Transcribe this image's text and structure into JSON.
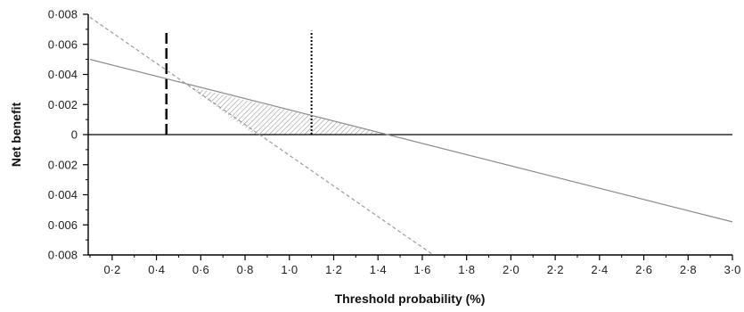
{
  "chart_data": {
    "type": "line",
    "title": "",
    "xlabel": "Threshold probability (%)",
    "ylabel": "Net benefit",
    "xlim": [
      0.1,
      3.0
    ],
    "ylim": [
      -0.008,
      0.008
    ],
    "x_ticks": [
      0.2,
      0.4,
      0.6,
      0.8,
      1.0,
      1.2,
      1.4,
      1.6,
      1.8,
      2.0,
      2.2,
      2.4,
      2.6,
      2.8,
      3.0
    ],
    "x_tick_labels": [
      "0·2",
      "0·4",
      "0·6",
      "0·8",
      "1·0",
      "1·2",
      "1·4",
      "1·6",
      "1·8",
      "2·0",
      "2·2",
      "2·4",
      "2·6",
      "2·8",
      "3·0"
    ],
    "y_ticks": [
      0.008,
      0.006,
      0.004,
      0.002,
      0,
      -0.002,
      -0.004,
      -0.006,
      -0.008
    ],
    "y_tick_labels": [
      "0·008",
      "0·006",
      "0·004",
      "0·002",
      "0",
      "0·002",
      "0·004",
      "0·006",
      "0·008"
    ],
    "grid": false,
    "legend": "none",
    "series": [
      {
        "style": "solid",
        "color": "#8c8c8c",
        "x": [
          0.1,
          3.0
        ],
        "y": [
          0.005,
          -0.0058
        ]
      },
      {
        "style": "dashed",
        "color": "#9a9a9a",
        "x": [
          0.1,
          1.65
        ],
        "y": [
          0.0078,
          -0.008
        ]
      }
    ],
    "reference_lines": [
      {
        "orientation": "horizontal",
        "value": 0,
        "style": "solid",
        "color": "#000000"
      },
      {
        "orientation": "vertical",
        "value": 0.445,
        "style": "long-dash",
        "color": "#000000",
        "y_range": [
          0,
          0.0069
        ]
      },
      {
        "orientation": "vertical",
        "value": 1.1,
        "style": "dotted",
        "color": "#000000",
        "y_range": [
          0,
          0.0069
        ]
      }
    ],
    "shaded_region": {
      "pattern": "diagonal-hatch",
      "color": "#9a9a9a",
      "polygon_x": [
        0.545,
        0.843,
        1.45
      ],
      "polygon_y": [
        0.0032,
        0,
        0
      ]
    }
  }
}
